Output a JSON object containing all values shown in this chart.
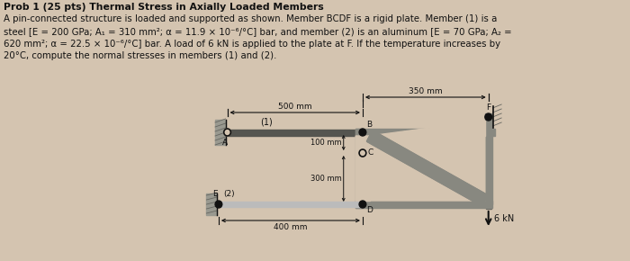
{
  "bg_color": "#d4c4b0",
  "text_color": "#111111",
  "plate_gray": "#888880",
  "plate_gray2": "#aaaaaa",
  "bar_dark": "#555550",
  "bar_light": "#bbbbbb",
  "pin_color": "#111111",
  "wall_gray": "#999990",
  "hatch_color": "#666660",
  "line1": "Prob 1 (25 pts) Thermal Stress in Axially Loaded Members",
  "line2": "A pin-connected structure is loaded and supported as shown. Member BCDF is a rigid plate. Member (1) is a",
  "line3": "steel [E = 200 GPa; A₁ = 310 mm²; α = 11.9 × 10⁻⁶/°C] bar, and member (2) is an aluminum [E = 70 GPa; A₂ =",
  "line4": "620 mm²; α = 22.5 × 10⁻⁶/°C] bar. A load of 6 kN is applied to the plate at F. If the temperature increases by",
  "line5": "20°C, compute the normal stresses in members (1) and (2)."
}
